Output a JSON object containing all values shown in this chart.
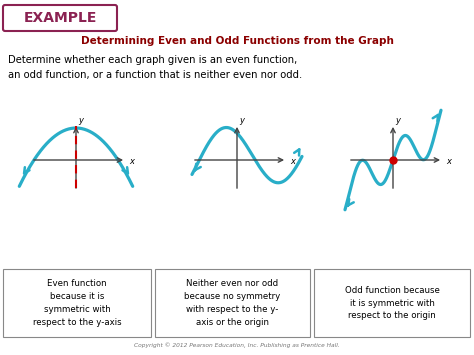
{
  "bg_color": "#ffffff",
  "example_box_color": "#8b2252",
  "example_text": "EXAMPLE",
  "subtitle": "Determining Even and Odd Functions from the Graph",
  "subtitle_color": "#8b0000",
  "body_text": "Determine whether each graph given is an even function,\nan odd function, or a function that is neither even nor odd.",
  "curve_color": "#29aec8",
  "dashed_line_color": "#cc0000",
  "dot_color": "#cc0000",
  "box1_text": "Even function\nbecause it is\nsymmetric with\nrespect to the y-axis",
  "box2_text": "Neither even nor odd\nbecause no symmetry\nwith respect to the y-\naxis or the origin",
  "box3_text": "Odd function because\nit is symmetric with\nrespect to the origin",
  "copyright_text": "Copyright © 2012 Pearson Education, Inc. Publishing as Prentice Hall.",
  "box_edge_color": "#888888",
  "axis_color": "#444444"
}
